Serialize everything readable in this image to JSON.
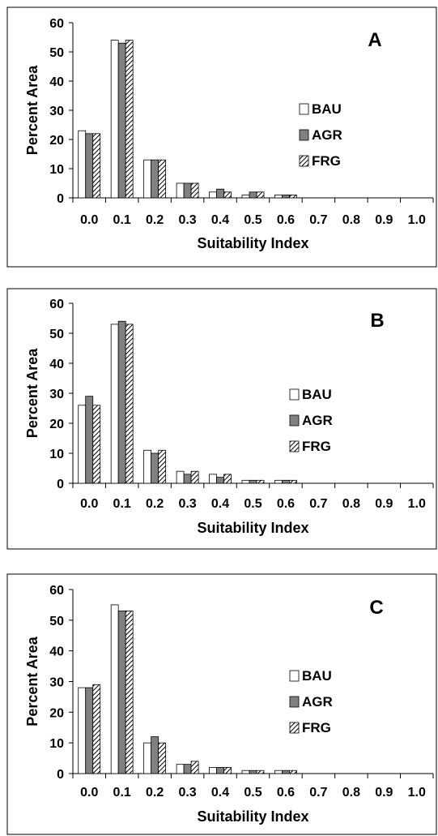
{
  "chart_data": [
    {
      "type": "bar",
      "panel_label": "A",
      "xlabel": "Suitability Index",
      "ylabel": "Percent Area",
      "ylim": [
        0,
        60
      ],
      "yticks": [
        0,
        10,
        20,
        30,
        40,
        50,
        60
      ],
      "categories": [
        "0.0",
        "0.1",
        "0.2",
        "0.3",
        "0.4",
        "0.5",
        "0.6",
        "0.7",
        "0.8",
        "0.9",
        "1.0"
      ],
      "legend_position": "right",
      "series": [
        {
          "name": "BAU",
          "fill": "white",
          "values": [
            23,
            54,
            13,
            5,
            2,
            1,
            1,
            0,
            0,
            0,
            0
          ]
        },
        {
          "name": "AGR",
          "fill": "gray",
          "values": [
            22,
            53,
            13,
            5,
            3,
            2,
            1,
            0,
            0,
            0,
            0
          ]
        },
        {
          "name": "FRG",
          "fill": "hatched",
          "values": [
            22,
            54,
            13,
            5,
            2,
            2,
            1,
            0,
            0,
            0,
            0
          ]
        }
      ]
    },
    {
      "type": "bar",
      "panel_label": "B",
      "xlabel": "Suitability Index",
      "ylabel": "Percent Area",
      "ylim": [
        0,
        60
      ],
      "yticks": [
        0,
        10,
        20,
        30,
        40,
        50,
        60
      ],
      "categories": [
        "0.0",
        "0.1",
        "0.2",
        "0.3",
        "0.4",
        "0.5",
        "0.6",
        "0.7",
        "0.8",
        "0.9",
        "1.0"
      ],
      "legend_position": "right",
      "series": [
        {
          "name": "BAU",
          "fill": "white",
          "values": [
            26,
            53,
            11,
            4,
            3,
            1,
            1,
            0,
            0,
            0,
            0
          ]
        },
        {
          "name": "AGR",
          "fill": "gray",
          "values": [
            29,
            54,
            10,
            3,
            2,
            1,
            1,
            0,
            0,
            0,
            0
          ]
        },
        {
          "name": "FRG",
          "fill": "hatched",
          "values": [
            26,
            53,
            11,
            4,
            3,
            1,
            1,
            0,
            0,
            0,
            0
          ]
        }
      ]
    },
    {
      "type": "bar",
      "panel_label": "C",
      "xlabel": "Suitability Index",
      "ylabel": "Percent Area",
      "ylim": [
        0,
        60
      ],
      "yticks": [
        0,
        10,
        20,
        30,
        40,
        50,
        60
      ],
      "categories": [
        "0.0",
        "0.1",
        "0.2",
        "0.3",
        "0.4",
        "0.5",
        "0.6",
        "0.7",
        "0.8",
        "0.9",
        "1.0"
      ],
      "legend_position": "right",
      "series": [
        {
          "name": "BAU",
          "fill": "white",
          "values": [
            28,
            55,
            10,
            3,
            2,
            1,
            1,
            0,
            0,
            0,
            0
          ]
        },
        {
          "name": "AGR",
          "fill": "gray",
          "values": [
            28,
            53,
            12,
            3,
            2,
            1,
            1,
            0,
            0,
            0,
            0
          ]
        },
        {
          "name": "FRG",
          "fill": "hatched",
          "values": [
            29,
            53,
            10,
            4,
            2,
            1,
            1,
            0,
            0,
            0,
            0
          ]
        }
      ]
    }
  ],
  "colors": {
    "frame": "#000000",
    "bar_outline": "#000000",
    "gray_fill": "#808080",
    "white_fill": "#ffffff",
    "hatch": "#000000"
  }
}
